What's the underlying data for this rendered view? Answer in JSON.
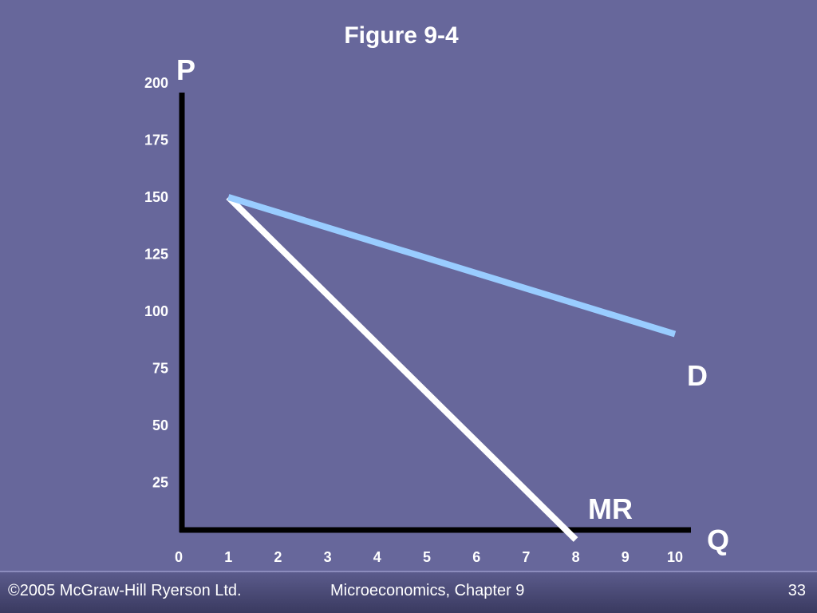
{
  "chart_data": {
    "type": "line",
    "title": "Figure 9-4",
    "xlabel": "Q",
    "ylabel": "P",
    "xlim": [
      0,
      10
    ],
    "ylim": [
      0,
      200
    ],
    "x_ticks": [
      "0",
      "1",
      "2",
      "3",
      "4",
      "5",
      "6",
      "7",
      "8",
      "9",
      "10"
    ],
    "y_ticks": [
      "25",
      "50",
      "75",
      "100",
      "125",
      "150",
      "175",
      "200"
    ],
    "grid": false,
    "series": [
      {
        "name": "D",
        "color": "#99ccff",
        "x": [
          1,
          10
        ],
        "y": [
          150,
          90
        ]
      },
      {
        "name": "MR",
        "color": "#ffffff",
        "x": [
          1,
          8
        ],
        "y": [
          150,
          0
        ]
      }
    ]
  },
  "footer": {
    "copyright": "©2005 McGraw-Hill Ryerson Ltd.",
    "course": "Microeconomics, Chapter 9",
    "page": "33"
  }
}
